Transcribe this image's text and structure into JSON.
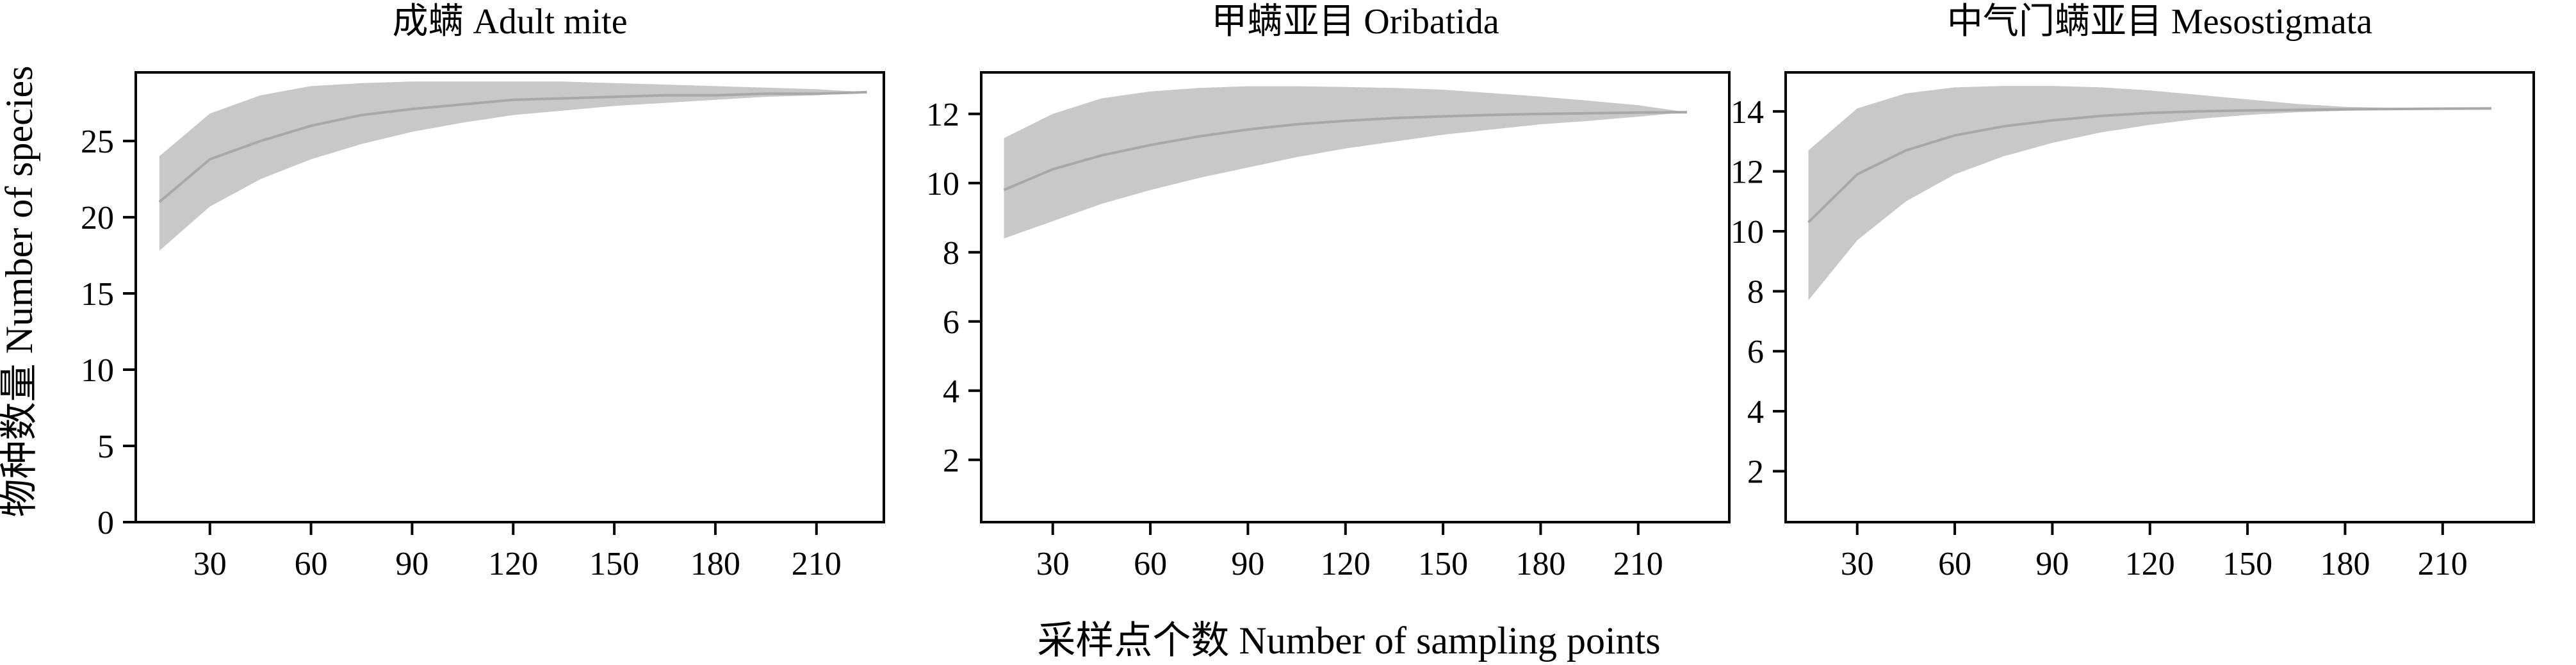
{
  "figure": {
    "ylabel": "物种数量 Number of species",
    "xlabel": "采样点个数 Number of sampling points"
  },
  "style": {
    "band_color": "#c8c8c8",
    "line_color": "#a8a8a8",
    "axis_color": "#000000"
  },
  "chart_data": [
    {
      "type": "area",
      "title": "成螨 Adult mite",
      "xlim": [
        8,
        230
      ],
      "ylim": [
        0,
        29.5
      ],
      "xticks": [
        30,
        60,
        90,
        120,
        150,
        180,
        210
      ],
      "yticks": [
        0,
        5,
        10,
        15,
        20,
        25
      ],
      "x": [
        15,
        30,
        45,
        60,
        75,
        90,
        105,
        120,
        135,
        150,
        165,
        180,
        195,
        210,
        225
      ],
      "series": [
        {
          "role": "mean",
          "values": [
            21.0,
            23.8,
            25.0,
            26.0,
            26.7,
            27.1,
            27.4,
            27.7,
            27.8,
            27.9,
            28.0,
            28.0,
            28.1,
            28.1,
            28.2
          ]
        },
        {
          "role": "upper",
          "values": [
            24.0,
            26.8,
            28.0,
            28.6,
            28.8,
            28.9,
            28.9,
            28.9,
            28.9,
            28.8,
            28.7,
            28.6,
            28.5,
            28.4,
            28.2
          ]
        },
        {
          "role": "lower",
          "values": [
            17.8,
            20.7,
            22.5,
            23.8,
            24.8,
            25.6,
            26.2,
            26.7,
            27.0,
            27.3,
            27.5,
            27.7,
            27.9,
            28.0,
            28.2
          ]
        }
      ]
    },
    {
      "type": "area",
      "title": "甲螨亚目 Oribatida",
      "xlim": [
        8,
        238
      ],
      "ylim": [
        0.2,
        13.2
      ],
      "xticks": [
        30,
        60,
        90,
        120,
        150,
        180,
        210
      ],
      "yticks": [
        2,
        4,
        6,
        8,
        10,
        12
      ],
      "x": [
        15,
        30,
        45,
        60,
        75,
        90,
        105,
        120,
        135,
        150,
        165,
        180,
        195,
        210,
        225
      ],
      "series": [
        {
          "role": "mean",
          "values": [
            9.8,
            10.4,
            10.8,
            11.1,
            11.35,
            11.55,
            11.7,
            11.8,
            11.88,
            11.93,
            11.97,
            12.0,
            12.02,
            12.04,
            12.05
          ]
        },
        {
          "role": "upper",
          "values": [
            11.3,
            12.0,
            12.45,
            12.65,
            12.75,
            12.8,
            12.8,
            12.78,
            12.75,
            12.7,
            12.6,
            12.5,
            12.38,
            12.25,
            12.05
          ]
        },
        {
          "role": "lower",
          "values": [
            8.4,
            8.9,
            9.4,
            9.8,
            10.15,
            10.45,
            10.75,
            11.0,
            11.2,
            11.4,
            11.55,
            11.7,
            11.8,
            11.92,
            12.05
          ]
        }
      ]
    },
    {
      "type": "area",
      "title": "中气门螨亚目 Mesostigmata",
      "xlim": [
        8,
        238
      ],
      "ylim": [
        0.3,
        15.3
      ],
      "xticks": [
        30,
        60,
        90,
        120,
        150,
        180,
        210
      ],
      "yticks": [
        2,
        4,
        6,
        8,
        10,
        12,
        14
      ],
      "x": [
        15,
        30,
        45,
        60,
        75,
        90,
        105,
        120,
        135,
        150,
        165,
        180,
        195,
        210,
        225
      ],
      "series": [
        {
          "role": "mean",
          "values": [
            10.3,
            11.9,
            12.7,
            13.2,
            13.5,
            13.7,
            13.85,
            13.95,
            14.0,
            14.03,
            14.05,
            14.07,
            14.08,
            14.09,
            14.1
          ]
        },
        {
          "role": "upper",
          "values": [
            12.7,
            14.1,
            14.6,
            14.8,
            14.85,
            14.85,
            14.8,
            14.7,
            14.55,
            14.4,
            14.25,
            14.15,
            14.12,
            14.1,
            14.1
          ]
        },
        {
          "role": "lower",
          "values": [
            7.7,
            9.7,
            11.0,
            11.9,
            12.5,
            12.95,
            13.3,
            13.55,
            13.75,
            13.88,
            13.97,
            14.02,
            14.06,
            14.08,
            14.1
          ]
        }
      ]
    }
  ]
}
